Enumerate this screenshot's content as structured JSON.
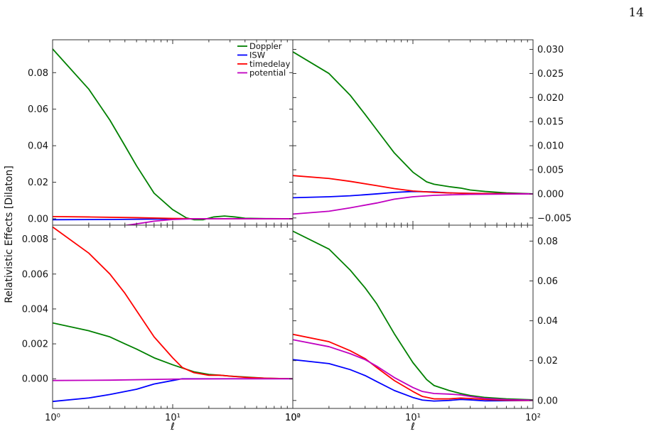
{
  "page_number": "14",
  "ylabel": "Relativistic Effects [Dilaton]",
  "xlabel": "ℓ",
  "legend": [
    {
      "name": "Doppler",
      "color": "#008000"
    },
    {
      "name": "ISW",
      "color": "#0000ff"
    },
    {
      "name": "timedelay",
      "color": "#ff0000"
    },
    {
      "name": "potential",
      "color": "#c000c0"
    }
  ],
  "chart_data": [
    {
      "type": "line",
      "panel": "top-left",
      "xscale": "log",
      "xlim": [
        1,
        100
      ],
      "ylim": [
        -0.0035,
        0.098
      ],
      "yticks": [
        0.0,
        0.02,
        0.04,
        0.06,
        0.08
      ],
      "ytick_labels": [
        "0.00",
        "0.02",
        "0.04",
        "0.06",
        "0.08"
      ],
      "xticks": [],
      "xtick_labels": [],
      "show_legend": true,
      "series": [
        {
          "name": "Doppler",
          "color": "#008000",
          "x": [
            1,
            2,
            3,
            4,
            5,
            7,
            10,
            13,
            15,
            18,
            22,
            27,
            33,
            40,
            60,
            100
          ],
          "y": [
            0.093,
            0.071,
            0.054,
            0.04,
            0.029,
            0.014,
            0.005,
            0.0005,
            -0.0005,
            -0.0005,
            0.001,
            0.0015,
            0.001,
            0.0003,
            0.0001,
            0.0
          ]
        },
        {
          "name": "ISW",
          "color": "#0000ff",
          "x": [
            1,
            3,
            10,
            20,
            100
          ],
          "y": [
            -0.0005,
            -0.0004,
            -0.0001,
            0.0,
            0.0
          ]
        },
        {
          "name": "timedelay",
          "color": "#ff0000",
          "x": [
            1,
            2,
            5,
            10,
            15,
            20,
            100
          ],
          "y": [
            0.0012,
            0.001,
            0.0006,
            0.0002,
            0.0,
            0.0,
            0.0
          ]
        },
        {
          "name": "potential",
          "color": "#c000c0",
          "x": [
            1,
            2,
            3,
            5,
            7,
            10,
            15,
            20,
            30,
            100
          ],
          "y": [
            -0.0085,
            -0.0065,
            -0.0048,
            -0.0028,
            -0.0013,
            -0.0004,
            0.0,
            0.0,
            0.0,
            0.0
          ]
        }
      ]
    },
    {
      "type": "line",
      "panel": "top-right",
      "xscale": "log",
      "xlim": [
        1,
        100
      ],
      "ylim": [
        -0.0065,
        0.032
      ],
      "yaxis_side": "right",
      "yticks": [
        -0.005,
        0.0,
        0.005,
        0.01,
        0.015,
        0.02,
        0.025,
        0.03
      ],
      "ytick_labels": [
        "−0.005",
        "0.000",
        "0.005",
        "0.010",
        "0.015",
        "0.020",
        "0.025",
        "0.030"
      ],
      "xticks": [],
      "xtick_labels": [],
      "series": [
        {
          "name": "Doppler",
          "color": "#008000",
          "x": [
            1,
            2,
            3,
            4,
            5,
            7,
            10,
            13,
            15,
            20,
            25,
            30,
            40,
            60,
            100
          ],
          "y": [
            0.0295,
            0.025,
            0.0205,
            0.0165,
            0.0133,
            0.0085,
            0.0045,
            0.0025,
            0.002,
            0.0015,
            0.0012,
            0.0008,
            0.0005,
            0.0002,
            0.0
          ]
        },
        {
          "name": "ISW",
          "color": "#0000ff",
          "x": [
            1,
            2,
            3,
            5,
            7,
            10,
            15,
            20,
            30,
            100
          ],
          "y": [
            -0.0008,
            -0.0006,
            -0.0004,
            0.0,
            0.0003,
            0.0005,
            0.0004,
            0.0002,
            0.0001,
            0.0
          ]
        },
        {
          "name": "timedelay",
          "color": "#ff0000",
          "x": [
            1,
            2,
            3,
            5,
            7,
            10,
            15,
            20,
            30,
            100
          ],
          "y": [
            0.0038,
            0.0032,
            0.0026,
            0.0017,
            0.0011,
            0.0006,
            0.0003,
            0.0002,
            0.0001,
            0.0
          ]
        },
        {
          "name": "potential",
          "color": "#c000c0",
          "x": [
            1,
            2,
            3,
            5,
            7,
            10,
            15,
            20,
            30,
            100
          ],
          "y": [
            -0.0042,
            -0.0036,
            -0.0029,
            -0.0019,
            -0.0011,
            -0.0006,
            -0.0003,
            -0.0002,
            -0.0001,
            0.0
          ]
        }
      ]
    },
    {
      "type": "line",
      "panel": "bottom-left",
      "xscale": "log",
      "xlim": [
        1,
        100
      ],
      "ylim": [
        -0.0017,
        0.0088
      ],
      "yticks": [
        0.0,
        0.002,
        0.004,
        0.006,
        0.008
      ],
      "ytick_labels": [
        "0.000",
        "0.002",
        "0.004",
        "0.006",
        "0.008"
      ],
      "xticks": [
        1,
        10,
        100
      ],
      "xtick_labels": [
        "10⁰",
        "10¹",
        "10²"
      ],
      "series": [
        {
          "name": "Doppler",
          "color": "#008000",
          "x": [
            1,
            2,
            3,
            4,
            5,
            7,
            10,
            15,
            20,
            25,
            30,
            40,
            60,
            100
          ],
          "y": [
            0.0032,
            0.00275,
            0.0024,
            0.002,
            0.0017,
            0.0012,
            0.0008,
            0.0004,
            0.00025,
            0.0002,
            0.00015,
            0.0001,
            3e-05,
            0.0
          ]
        },
        {
          "name": "ISW",
          "color": "#0000ff",
          "x": [
            1,
            2,
            3,
            5,
            7,
            10,
            12,
            15,
            20,
            100
          ],
          "y": [
            -0.0013,
            -0.0011,
            -0.0009,
            -0.0006,
            -0.0003,
            -0.0001,
            0.0,
            0.0,
            0.0,
            0.0
          ]
        },
        {
          "name": "timedelay",
          "color": "#ff0000",
          "x": [
            1,
            2,
            3,
            4,
            5,
            7,
            10,
            12,
            15,
            20,
            25,
            30,
            40,
            60,
            100
          ],
          "y": [
            0.0087,
            0.0072,
            0.006,
            0.0049,
            0.0039,
            0.0024,
            0.0012,
            0.00065,
            0.00035,
            0.0002,
            0.0002,
            0.00015,
            8e-05,
            3e-05,
            0.0
          ]
        },
        {
          "name": "potential",
          "color": "#c000c0",
          "x": [
            1,
            3,
            10,
            30,
            100
          ],
          "y": [
            -0.0001,
            -8e-05,
            -2e-05,
            0.0,
            0.0
          ]
        }
      ]
    },
    {
      "type": "line",
      "panel": "bottom-right",
      "xscale": "log",
      "xlim": [
        1,
        100
      ],
      "ylim": [
        -0.004,
        0.088
      ],
      "yaxis_side": "right",
      "yticks": [
        0.0,
        0.02,
        0.04,
        0.06,
        0.08
      ],
      "ytick_labels": [
        "0.00",
        "0.02",
        "0.04",
        "0.06",
        "0.08"
      ],
      "xticks": [
        1,
        10,
        100
      ],
      "xtick_labels": [
        "10⁰",
        "10¹",
        "10²"
      ],
      "series": [
        {
          "name": "Doppler",
          "color": "#008000",
          "x": [
            1,
            2,
            3,
            4,
            5,
            7,
            10,
            13,
            15,
            20,
            25,
            30,
            40,
            60,
            100
          ],
          "y": [
            0.085,
            0.076,
            0.0655,
            0.0565,
            0.0485,
            0.0335,
            0.019,
            0.0105,
            0.0075,
            0.005,
            0.0035,
            0.0025,
            0.0015,
            0.0008,
            0.0003
          ]
        },
        {
          "name": "ISW",
          "color": "#0000ff",
          "x": [
            1,
            2,
            3,
            4,
            5,
            7,
            10,
            12,
            15,
            20,
            25,
            30,
            40,
            60,
            100
          ],
          "y": [
            0.0205,
            0.0185,
            0.0155,
            0.0125,
            0.0095,
            0.005,
            0.0015,
            0.0002,
            -0.0003,
            0.0,
            0.0005,
            0.0003,
            -0.0002,
            -0.0001,
            0.0
          ]
        },
        {
          "name": "timedelay",
          "color": "#ff0000",
          "x": [
            1,
            2,
            3,
            4,
            5,
            7,
            10,
            12,
            15,
            20,
            25,
            30,
            40,
            60,
            100
          ],
          "y": [
            0.0332,
            0.0295,
            0.025,
            0.021,
            0.0165,
            0.01,
            0.0045,
            0.002,
            0.0008,
            0.0008,
            0.0012,
            0.001,
            0.0005,
            0.0001,
            0.0
          ]
        },
        {
          "name": "potential",
          "color": "#c000c0",
          "x": [
            1,
            2,
            3,
            4,
            5,
            7,
            10,
            12,
            15,
            20,
            25,
            30,
            40,
            60,
            100
          ],
          "y": [
            0.0305,
            0.027,
            0.0235,
            0.0205,
            0.0172,
            0.0115,
            0.0065,
            0.0045,
            0.0035,
            0.0032,
            0.0028,
            0.002,
            0.001,
            0.0004,
            0.0001
          ]
        }
      ]
    }
  ]
}
